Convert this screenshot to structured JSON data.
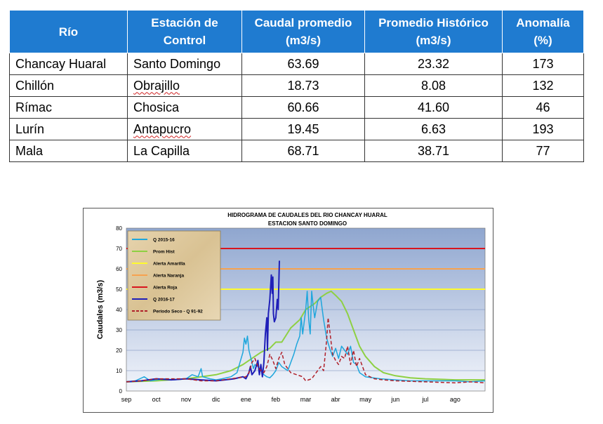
{
  "table": {
    "headers": [
      "Río",
      "Estación de Control",
      "Caudal promedio (m3/s)",
      "Promedio Histórico (m3/s)",
      "Anomalía (%)"
    ],
    "rows": [
      [
        "Chancay Huaral",
        "Santo Domingo",
        "63.69",
        "23.32",
        "173"
      ],
      [
        "Chillón",
        "Obrajillo",
        "18.73",
        "8.08",
        "132"
      ],
      [
        "Rímac",
        "Chosica",
        "60.66",
        "41.60",
        "46"
      ],
      [
        "Lurín",
        "Antapucro",
        "19.45",
        "6.63",
        "193"
      ],
      [
        "Mala",
        "La Capilla",
        "68.71",
        "38.71",
        "77"
      ]
    ]
  },
  "chart_data": {
    "type": "line",
    "title": "HIDROGRAMA DE CAUDALES  DEL RIO CHANCAY HUARAL",
    "subtitle": "ESTACION SANTO DOMINGO",
    "ylabel": "Caudales (m3/s)",
    "xlabel": "",
    "ylim": [
      0,
      80
    ],
    "yticks": [
      "0",
      "10",
      "20",
      "30",
      "40",
      "50",
      "60",
      "70",
      "80"
    ],
    "xticks": [
      "sep",
      "oct",
      "nov",
      "dic",
      "ene",
      "feb",
      "mar",
      "abr",
      "may",
      "jun",
      "jul",
      "ago"
    ],
    "xlim": [
      0,
      12
    ],
    "legend_position": "top-left",
    "series": [
      {
        "name": "Q 2015-16",
        "color": "#1ea6dc",
        "width": 1.5,
        "dash": "",
        "points": [
          [
            0,
            4.5
          ],
          [
            0.3,
            5
          ],
          [
            0.6,
            7
          ],
          [
            0.8,
            5
          ],
          [
            1,
            5.5
          ],
          [
            1.3,
            6
          ],
          [
            1.6,
            5.5
          ],
          [
            2,
            6
          ],
          [
            2.2,
            8
          ],
          [
            2.4,
            7
          ],
          [
            2.5,
            11
          ],
          [
            2.55,
            7
          ],
          [
            2.8,
            6
          ],
          [
            3,
            5.5
          ],
          [
            3.2,
            6
          ],
          [
            3.5,
            7
          ],
          [
            3.7,
            9
          ],
          [
            3.8,
            14
          ],
          [
            3.9,
            19
          ],
          [
            3.95,
            26
          ],
          [
            4,
            23
          ],
          [
            4.05,
            27
          ],
          [
            4.1,
            20
          ],
          [
            4.2,
            14
          ],
          [
            4.25,
            11
          ],
          [
            4.3,
            13
          ],
          [
            4.4,
            12
          ],
          [
            4.5,
            10
          ],
          [
            4.6,
            8
          ],
          [
            4.7,
            7
          ],
          [
            4.8,
            6.5
          ],
          [
            4.9,
            8
          ],
          [
            5,
            10
          ],
          [
            5.1,
            14
          ],
          [
            5.2,
            12
          ],
          [
            5.3,
            11
          ],
          [
            5.4,
            10
          ],
          [
            5.5,
            14
          ],
          [
            5.6,
            18
          ],
          [
            5.7,
            23
          ],
          [
            5.8,
            27
          ],
          [
            5.85,
            36
          ],
          [
            5.9,
            28
          ],
          [
            6,
            40
          ],
          [
            6.05,
            49
          ],
          [
            6.1,
            35
          ],
          [
            6.15,
            28
          ],
          [
            6.2,
            49
          ],
          [
            6.25,
            42
          ],
          [
            6.3,
            36
          ],
          [
            6.4,
            44
          ],
          [
            6.5,
            46
          ],
          [
            6.6,
            35
          ],
          [
            6.7,
            26
          ],
          [
            6.8,
            21
          ],
          [
            6.9,
            17
          ],
          [
            7,
            21
          ],
          [
            7.1,
            16
          ],
          [
            7.2,
            22
          ],
          [
            7.3,
            20
          ],
          [
            7.4,
            18
          ],
          [
            7.5,
            22
          ],
          [
            7.6,
            14
          ],
          [
            7.7,
            13
          ],
          [
            7.8,
            9
          ],
          [
            8,
            7
          ],
          [
            8.5,
            6
          ],
          [
            9,
            5.5
          ],
          [
            9.5,
            5
          ],
          [
            10,
            5
          ],
          [
            10.5,
            5
          ],
          [
            11,
            5
          ],
          [
            11.5,
            4.5
          ],
          [
            12,
            5
          ]
        ]
      },
      {
        "name": "Prom Hist",
        "color": "#8ed043",
        "width": 2,
        "dash": "",
        "points": [
          [
            0,
            4.5
          ],
          [
            1,
            5
          ],
          [
            2,
            6
          ],
          [
            2.5,
            7
          ],
          [
            3,
            8
          ],
          [
            3.5,
            10
          ],
          [
            3.9,
            13
          ],
          [
            4.2,
            16
          ],
          [
            4.5,
            19
          ],
          [
            4.8,
            21
          ],
          [
            5,
            24
          ],
          [
            5.2,
            24
          ],
          [
            5.5,
            31
          ],
          [
            5.8,
            35
          ],
          [
            6,
            40
          ],
          [
            6.3,
            43
          ],
          [
            6.5,
            46
          ],
          [
            6.7,
            48
          ],
          [
            6.85,
            49
          ],
          [
            7,
            47
          ],
          [
            7.2,
            44
          ],
          [
            7.4,
            38
          ],
          [
            7.6,
            30
          ],
          [
            7.8,
            22
          ],
          [
            8,
            17
          ],
          [
            8.3,
            12
          ],
          [
            8.6,
            9
          ],
          [
            9,
            7.5
          ],
          [
            9.5,
            6.5
          ],
          [
            10,
            6
          ],
          [
            11,
            5.5
          ],
          [
            12,
            5.5
          ]
        ]
      },
      {
        "name": "Alerta Amarilla",
        "color": "#fffb2d",
        "width": 2,
        "dash": "",
        "points": [
          [
            0,
            50
          ],
          [
            12,
            50
          ]
        ]
      },
      {
        "name": "Alerta Naranja",
        "color": "#f7a24f",
        "width": 2,
        "dash": "",
        "points": [
          [
            0,
            60
          ],
          [
            12,
            60
          ]
        ]
      },
      {
        "name": "Alerta Roja",
        "color": "#d8151e",
        "width": 2,
        "dash": "",
        "points": [
          [
            0,
            70
          ],
          [
            12,
            70
          ]
        ]
      },
      {
        "name": "Q 2016-17",
        "color": "#1f1fb8",
        "width": 2,
        "dash": "",
        "points": [
          [
            0,
            4.5
          ],
          [
            0.5,
            5
          ],
          [
            1,
            6
          ],
          [
            1.5,
            5.5
          ],
          [
            2,
            6
          ],
          [
            2.5,
            5.5
          ],
          [
            3,
            5
          ],
          [
            3.3,
            5.5
          ],
          [
            3.6,
            6
          ],
          [
            3.9,
            7
          ],
          [
            4,
            6
          ],
          [
            4.1,
            9
          ],
          [
            4.15,
            12
          ],
          [
            4.2,
            8
          ],
          [
            4.3,
            10
          ],
          [
            4.4,
            15
          ],
          [
            4.45,
            8
          ],
          [
            4.5,
            13
          ],
          [
            4.55,
            7
          ],
          [
            4.6,
            14
          ],
          [
            4.65,
            28
          ],
          [
            4.7,
            36
          ],
          [
            4.72,
            20
          ],
          [
            4.75,
            38
          ],
          [
            4.8,
            45
          ],
          [
            4.85,
            57
          ],
          [
            4.88,
            48
          ],
          [
            4.9,
            56
          ],
          [
            4.92,
            38
          ],
          [
            4.95,
            34
          ],
          [
            5,
            36
          ],
          [
            5.05,
            45
          ],
          [
            5.08,
            40
          ],
          [
            5.12,
            64
          ]
        ]
      },
      {
        "name": "Periodo Seco - Q 91-92",
        "color": "#b0202a",
        "width": 1.5,
        "dash": "5,3",
        "points": [
          [
            0,
            4.5
          ],
          [
            0.5,
            5
          ],
          [
            1,
            6
          ],
          [
            1.5,
            6
          ],
          [
            2,
            6
          ],
          [
            2.5,
            5
          ],
          [
            3,
            5
          ],
          [
            3.5,
            6
          ],
          [
            4,
            7
          ],
          [
            4.1,
            9
          ],
          [
            4.2,
            14
          ],
          [
            4.3,
            16
          ],
          [
            4.4,
            12
          ],
          [
            4.5,
            10
          ],
          [
            4.6,
            9
          ],
          [
            4.7,
            12
          ],
          [
            4.8,
            18
          ],
          [
            4.9,
            15
          ],
          [
            5,
            11
          ],
          [
            5.1,
            16
          ],
          [
            5.2,
            19
          ],
          [
            5.3,
            13
          ],
          [
            5.5,
            9
          ],
          [
            5.7,
            8
          ],
          [
            5.9,
            7
          ],
          [
            6,
            5
          ],
          [
            6.2,
            6
          ],
          [
            6.4,
            10
          ],
          [
            6.5,
            12
          ],
          [
            6.6,
            10
          ],
          [
            6.7,
            25
          ],
          [
            6.75,
            36
          ],
          [
            6.8,
            30
          ],
          [
            6.9,
            18
          ],
          [
            7,
            15
          ],
          [
            7.1,
            13
          ],
          [
            7.2,
            17
          ],
          [
            7.3,
            16
          ],
          [
            7.4,
            22
          ],
          [
            7.5,
            13
          ],
          [
            7.6,
            20
          ],
          [
            7.7,
            12
          ],
          [
            7.8,
            16
          ],
          [
            8,
            8
          ],
          [
            8.3,
            6
          ],
          [
            8.6,
            5.5
          ],
          [
            9,
            5
          ],
          [
            10,
            4.5
          ],
          [
            11,
            4
          ],
          [
            11.5,
            4.5
          ],
          [
            12,
            4
          ]
        ]
      }
    ]
  }
}
